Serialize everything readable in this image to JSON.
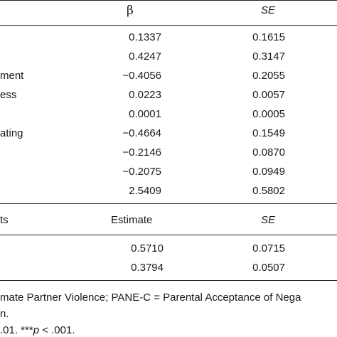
{
  "table1": {
    "header": {
      "beta": "β",
      "se": "SE"
    },
    "rows": [
      {
        "label": "",
        "beta": "0.1337",
        "se": "0.1615"
      },
      {
        "label": "",
        "beta": "0.4247",
        "se": "0.3147"
      },
      {
        "label": "ment",
        "beta": "−0.4056",
        "se": "0.2055"
      },
      {
        "label": "ess",
        "beta": "0.0223",
        "se": "0.0057"
      },
      {
        "label": "",
        "beta": "0.0001",
        "se": "0.0005"
      },
      {
        "label": "ating",
        "beta": "−0.4664",
        "se": "0.1549"
      },
      {
        "label": "",
        "beta": "−0.2146",
        "se": "0.0870"
      },
      {
        "label": "",
        "beta": "−0.2075",
        "se": "0.0949"
      },
      {
        "label": "",
        "beta": "2.5409",
        "se": "0.5802"
      }
    ]
  },
  "table2": {
    "header": {
      "label": "ts",
      "estimate": "Estimate",
      "se": "SE"
    },
    "rows": [
      {
        "estimate": "0.5710",
        "se": "0.0715"
      },
      {
        "estimate": "0.3794",
        "se": "0.0507"
      }
    ]
  },
  "notes": {
    "line1": "mate Partner Violence; PANE-C = Parental Acceptance of Nega",
    "line2": "n.",
    "line3_prefix": ".01. ***",
    "line3_p": "p",
    "line3_suffix": " < .001."
  }
}
